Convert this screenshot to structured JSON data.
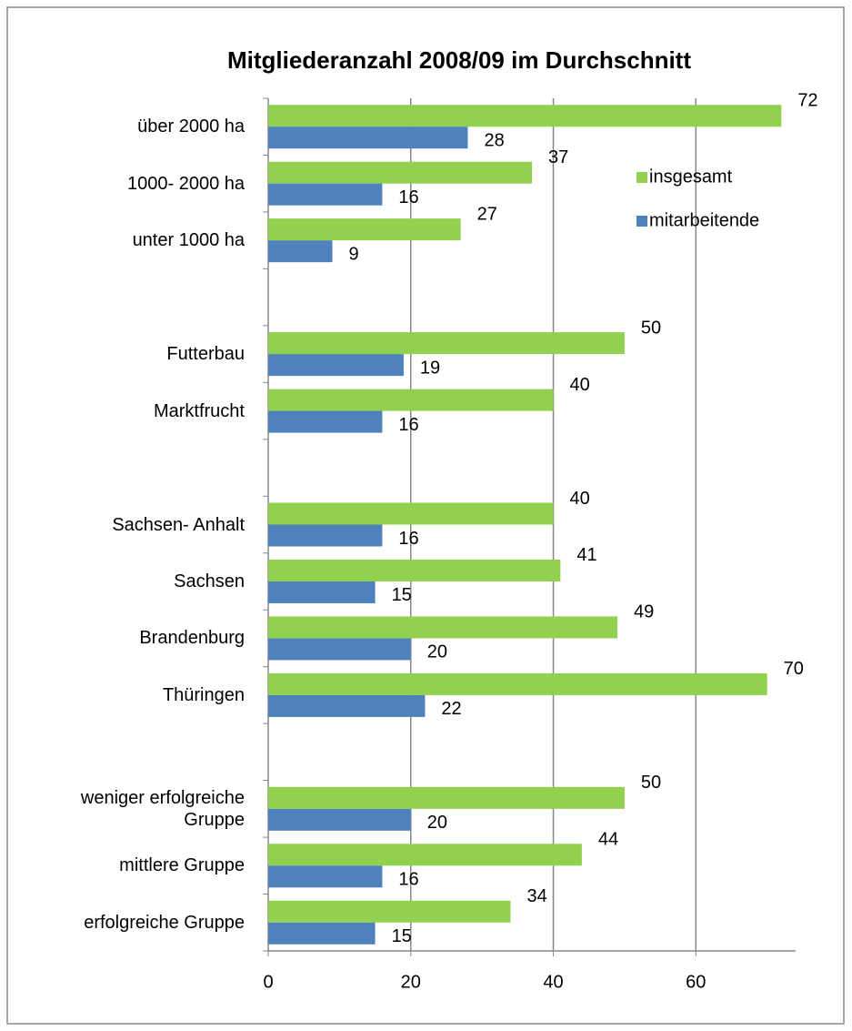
{
  "chart_data": {
    "type": "barh",
    "title": "Mitgliederanzahl 2008/09 im Durchschnitt",
    "categories": [
      "über 2000  ha",
      "1000- 2000  ha",
      "unter 1000  ha",
      null,
      "Futterbau",
      "Marktfrucht",
      null,
      "Sachsen- Anhalt",
      "Sachsen",
      "Brandenburg",
      "Thüringen",
      null,
      "weniger erfolgreiche Gruppe",
      "mittlere Gruppe",
      "erfolgreiche Gruppe"
    ],
    "series": [
      {
        "name": "insgesamt",
        "color": "#92d050",
        "values": [
          72,
          37,
          27,
          null,
          50,
          40,
          null,
          40,
          41,
          49,
          70,
          null,
          50,
          44,
          34
        ]
      },
      {
        "name": "mitarbeitende",
        "color": "#4f81bd",
        "values": [
          28,
          16,
          9,
          null,
          19,
          16,
          null,
          16,
          15,
          20,
          22,
          null,
          20,
          16,
          15
        ]
      }
    ],
    "xlim": [
      0,
      74
    ],
    "xticks": [
      0,
      20,
      40,
      60
    ],
    "grid": true,
    "legend": "upper right"
  }
}
